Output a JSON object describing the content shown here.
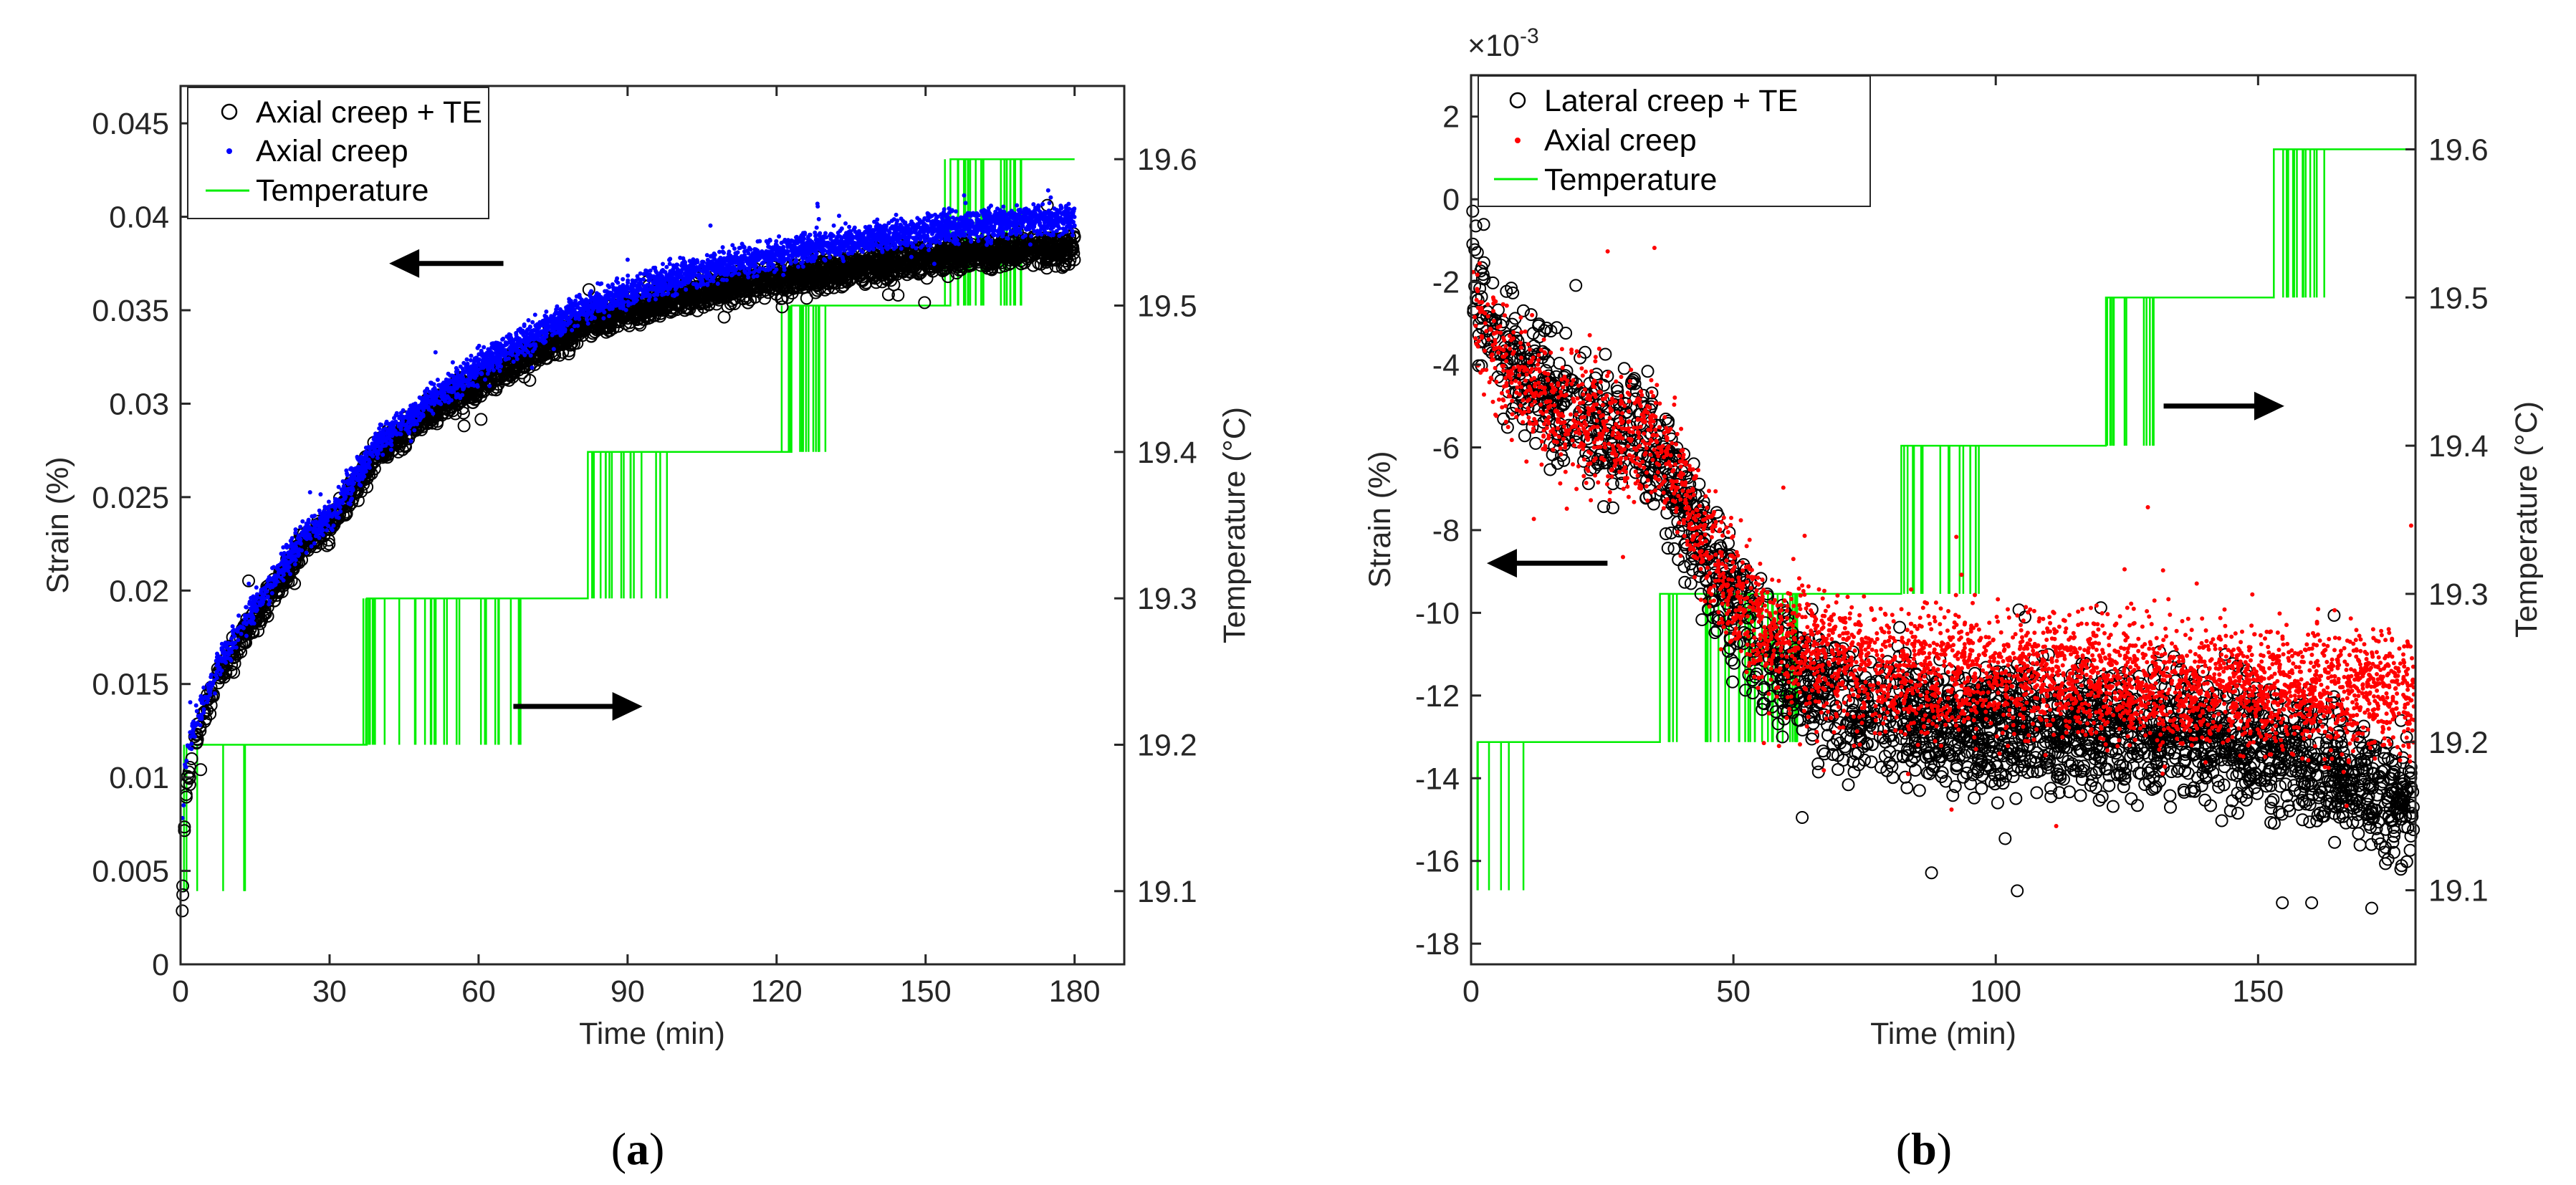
{
  "chart_data": [
    {
      "panel": "a",
      "type": "scatter",
      "caption_prefix": "(",
      "caption_letter": "a",
      "caption_suffix": ")",
      "xlabel": "Time (min)",
      "ylabel": "Strain (%)",
      "ylabel_right": "Temperature (°C)",
      "xlim": [
        0,
        190
      ],
      "ylim": [
        0,
        0.047
      ],
      "ylim_right": [
        19.05,
        19.65
      ],
      "x_ticks": [
        0,
        30,
        60,
        90,
        120,
        150,
        180
      ],
      "x_tick_labels": [
        "0",
        "30",
        "60",
        "90",
        "120",
        "150",
        "180"
      ],
      "y_ticks": [
        0,
        0.005,
        0.01,
        0.015,
        0.02,
        0.025,
        0.03,
        0.035,
        0.04,
        0.045
      ],
      "y_tick_labels": [
        "0",
        "0.005",
        "0.01",
        "0.015",
        "0.02",
        "0.025",
        "0.03",
        "0.035",
        "0.04",
        "0.045"
      ],
      "y_right_ticks": [
        19.1,
        19.2,
        19.3,
        19.4,
        19.5,
        19.6
      ],
      "y_right_tick_labels": [
        "19.1",
        "19.2",
        "19.3",
        "19.4",
        "19.5",
        "19.6"
      ],
      "exponent_label": "",
      "legend_position": "top-left",
      "legend": [
        {
          "label": "Axial creep + TE",
          "marker": "open-circle",
          "color": "#000000"
        },
        {
          "label": "Axial creep",
          "marker": "dot",
          "color": "#0000ff"
        },
        {
          "label": "Temperature",
          "marker": "line",
          "color": "#00ee00"
        }
      ],
      "series": [
        {
          "name": "Axial creep + TE",
          "style": "circle",
          "color": "#000000",
          "x": [
            0,
            0.5,
            1,
            2,
            3,
            5,
            8,
            10,
            15,
            20,
            25,
            30,
            35,
            40,
            45,
            50,
            55,
            60,
            70,
            80,
            90,
            100,
            110,
            120,
            130,
            140,
            150,
            160,
            170,
            180
          ],
          "y": [
            0.001,
            0.005,
            0.009,
            0.011,
            0.012,
            0.0135,
            0.0155,
            0.0165,
            0.0185,
            0.0205,
            0.0225,
            0.0235,
            0.0255,
            0.0275,
            0.0285,
            0.0295,
            0.0303,
            0.031,
            0.0325,
            0.034,
            0.035,
            0.0357,
            0.0362,
            0.0366,
            0.037,
            0.0374,
            0.0377,
            0.038,
            0.0382,
            0.0383
          ],
          "noise": 0.0007
        },
        {
          "name": "Axial creep",
          "style": "dot",
          "color": "#0000ff",
          "x": [
            0,
            0.5,
            1,
            2,
            3,
            5,
            8,
            10,
            15,
            20,
            25,
            30,
            35,
            40,
            45,
            50,
            55,
            60,
            70,
            80,
            90,
            100,
            110,
            120,
            130,
            140,
            150,
            160,
            170,
            180
          ],
          "y": [
            0.004,
            0.008,
            0.0105,
            0.0122,
            0.013,
            0.0143,
            0.0162,
            0.0172,
            0.0192,
            0.021,
            0.023,
            0.024,
            0.026,
            0.028,
            0.029,
            0.0302,
            0.031,
            0.032,
            0.0335,
            0.035,
            0.036,
            0.0368,
            0.0375,
            0.038,
            0.0385,
            0.0389,
            0.0393,
            0.0396,
            0.0398,
            0.0399
          ],
          "noise": 0.0007
        }
      ],
      "temperature": [
        {
          "x": 1.2,
          "y": 19.1
        },
        {
          "x": 1.2,
          "y": 19.2
        },
        {
          "x": 37.5,
          "y": 19.2
        },
        {
          "x": 37.5,
          "y": 19.3
        },
        {
          "x": 82,
          "y": 19.3
        },
        {
          "x": 82,
          "y": 19.4
        },
        {
          "x": 123,
          "y": 19.4
        },
        {
          "x": 123,
          "y": 19.5
        },
        {
          "x": 155,
          "y": 19.5
        },
        {
          "x": 155,
          "y": 19.6
        },
        {
          "x": 180,
          "y": 19.6
        }
      ],
      "temperature_switch_bands": [
        {
          "low": 19.1,
          "high": 19.2,
          "x_from": 0,
          "x_to": 14,
          "count": 5
        },
        {
          "low": 19.2,
          "high": 19.3,
          "x_from": 35,
          "x_to": 69,
          "count": 34
        },
        {
          "low": 19.3,
          "high": 19.4,
          "x_from": 80,
          "x_to": 98,
          "count": 16
        },
        {
          "low": 19.4,
          "high": 19.5,
          "x_from": 121,
          "x_to": 131,
          "count": 14
        },
        {
          "low": 19.5,
          "high": 19.6,
          "x_from": 153,
          "x_to": 170,
          "count": 24
        }
      ],
      "arrows": [
        {
          "direction": "left",
          "x_from": 65,
          "x_to": 42,
          "y": 0.0375
        },
        {
          "direction": "right",
          "x_from": 67,
          "x_to": 93,
          "y": 0.0138
        }
      ]
    },
    {
      "panel": "b",
      "type": "scatter",
      "caption_prefix": "(",
      "caption_letter": "b",
      "caption_suffix": ")",
      "xlabel": "Time (min)",
      "ylabel": "Strain (%)",
      "ylabel_right": "Temperature (°C)",
      "xlim": [
        0,
        180
      ],
      "ylim": [
        -0.0185,
        0.003
      ],
      "ylim_right": [
        19.05,
        19.65
      ],
      "x_ticks": [
        0,
        50,
        100,
        150
      ],
      "x_tick_labels": [
        "0",
        "50",
        "100",
        "150"
      ],
      "y_ticks": [
        0.002,
        0,
        -0.002,
        -0.004,
        -0.006,
        -0.008,
        -0.01,
        -0.012,
        -0.014,
        -0.016,
        -0.018
      ],
      "y_tick_labels": [
        "2",
        "0",
        "-2",
        "-4",
        "-6",
        "-8",
        "-10",
        "-12",
        "-14",
        "-16",
        "-18"
      ],
      "y_right_ticks": [
        19.1,
        19.2,
        19.3,
        19.4,
        19.5,
        19.6
      ],
      "y_right_tick_labels": [
        "19.1",
        "19.2",
        "19.3",
        "19.4",
        "19.5",
        "19.6"
      ],
      "exponent_label": "×10",
      "exponent_power": "-3",
      "legend_position": "top-left",
      "legend": [
        {
          "label": "Lateral creep + TE",
          "marker": "open-circle",
          "color": "#000000"
        },
        {
          "label": "Axial creep",
          "marker": "dot",
          "color": "#ff0000"
        },
        {
          "label": "Temperature",
          "marker": "line",
          "color": "#00ee00"
        }
      ],
      "series": [
        {
          "name": "Lateral creep + TE",
          "style": "circle",
          "color": "#000000",
          "x": [
            0,
            2,
            5,
            10,
            15,
            20,
            25,
            30,
            35,
            40,
            45,
            50,
            55,
            60,
            70,
            80,
            90,
            100,
            110,
            120,
            130,
            140,
            150,
            160,
            170,
            180
          ],
          "y": [
            -0.002,
            -0.0025,
            -0.0035,
            -0.0042,
            -0.0048,
            -0.0052,
            -0.0055,
            -0.0058,
            -0.006,
            -0.0072,
            -0.0088,
            -0.0098,
            -0.0108,
            -0.0115,
            -0.0122,
            -0.0125,
            -0.0127,
            -0.0128,
            -0.0127,
            -0.0128,
            -0.0129,
            -0.013,
            -0.0132,
            -0.0136,
            -0.0142,
            -0.0148
          ],
          "noise": 0.0013
        },
        {
          "name": "Axial creep",
          "style": "dot",
          "color": "#ff0000",
          "x": [
            0,
            2,
            5,
            10,
            15,
            20,
            25,
            30,
            35,
            40,
            45,
            50,
            55,
            60,
            70,
            80,
            90,
            100,
            110,
            120,
            130,
            140,
            150,
            160,
            170,
            180
          ],
          "y": [
            -0.0025,
            -0.003,
            -0.0038,
            -0.0045,
            -0.005,
            -0.0053,
            -0.0055,
            -0.0058,
            -0.0058,
            -0.007,
            -0.0085,
            -0.0095,
            -0.0103,
            -0.0108,
            -0.0113,
            -0.0115,
            -0.0115,
            -0.0115,
            -0.0115,
            -0.0116,
            -0.0117,
            -0.0118,
            -0.0118,
            -0.0119,
            -0.012,
            -0.012
          ],
          "noise": 0.0013
        }
      ],
      "temperature": [
        {
          "x": 1.2,
          "y": 19.1
        },
        {
          "x": 1.2,
          "y": 19.2
        },
        {
          "x": 36,
          "y": 19.2
        },
        {
          "x": 36,
          "y": 19.3
        },
        {
          "x": 82,
          "y": 19.3
        },
        {
          "x": 82,
          "y": 19.4
        },
        {
          "x": 121,
          "y": 19.4
        },
        {
          "x": 121,
          "y": 19.5
        },
        {
          "x": 153,
          "y": 19.5
        },
        {
          "x": 153,
          "y": 19.6
        },
        {
          "x": 180,
          "y": 19.6
        }
      ],
      "temperature_switch_bands": [
        {
          "low": 19.1,
          "high": 19.2,
          "x_from": 0,
          "x_to": 14,
          "count": 5
        },
        {
          "low": 19.2,
          "high": 19.3,
          "x_from": 35,
          "x_to": 63,
          "count": 30
        },
        {
          "low": 19.3,
          "high": 19.4,
          "x_from": 82,
          "x_to": 97,
          "count": 16
        },
        {
          "low": 19.4,
          "high": 19.5,
          "x_from": 121,
          "x_to": 131,
          "count": 12
        },
        {
          "low": 19.5,
          "high": 19.6,
          "x_from": 153,
          "x_to": 163,
          "count": 14
        }
      ],
      "arrows": [
        {
          "direction": "left",
          "x_from": 26,
          "x_to": 3,
          "y": -0.0088
        },
        {
          "direction": "right",
          "x_from": 132,
          "x_to": 155,
          "y": -0.005
        }
      ]
    }
  ]
}
